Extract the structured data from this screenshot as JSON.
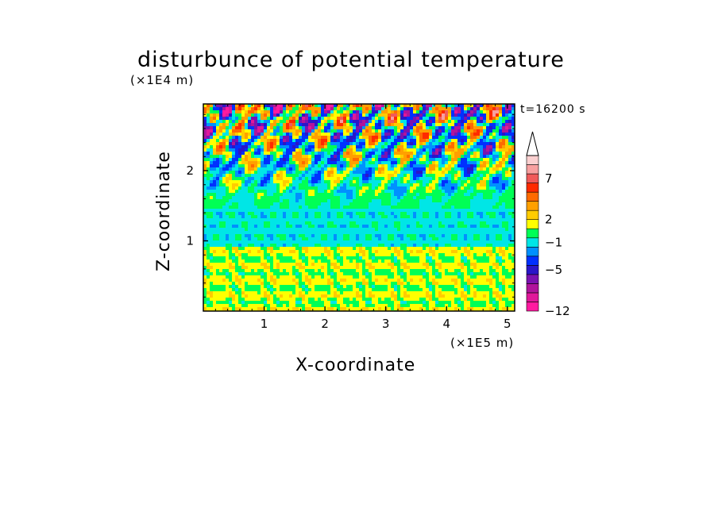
{
  "chart_data": {
    "type": "heatmap",
    "title": "disturbunce of potential temperature",
    "xlabel": "X-coordinate",
    "ylabel": "Z-coordinate",
    "x_unit": "(×1E5 m)",
    "z_unit": "(×1E4 m)",
    "time_label": "t=16200 s",
    "xlim": [
      0,
      5.12
    ],
    "ylim": [
      0,
      2.95
    ],
    "x_ticks": [
      {
        "value": 1,
        "label": "1"
      },
      {
        "value": 2,
        "label": "2"
      },
      {
        "value": 3,
        "label": "3"
      },
      {
        "value": 4,
        "label": "4"
      },
      {
        "value": 5,
        "label": "5"
      }
    ],
    "y_ticks": [
      {
        "value": 1,
        "label": "1"
      },
      {
        "value": 2,
        "label": "2"
      }
    ],
    "colorbar": {
      "colors": [
        "#ff1aa0",
        "#e0189a",
        "#b0149c",
        "#7a12b0",
        "#2a16c8",
        "#0030ff",
        "#0090ff",
        "#00e6e6",
        "#00ff55",
        "#ffff00",
        "#ffcc00",
        "#ffa000",
        "#ff6a00",
        "#ff2a00",
        "#f05a5a",
        "#f7a0a0",
        "#fad0d0"
      ],
      "labels": [
        {
          "level": 7,
          "label": "7"
        },
        {
          "level": 2,
          "label": "2"
        },
        {
          "level": -1,
          "label": "−1"
        },
        {
          "level": -5,
          "label": "−5"
        },
        {
          "level": -12,
          "label": "−12"
        }
      ],
      "label_band_index": [
        14.5,
        10.0,
        7.5,
        4.5,
        0.0
      ],
      "top_arrow": true
    },
    "field_bands": [
      {
        "z_range": [
          0.0,
          0.35
        ],
        "dominant": "#ffff00",
        "secondary": "#00ff55"
      },
      {
        "z_range": [
          0.35,
          0.9
        ],
        "dominant": "#ffff00",
        "secondary": "#ffcc00"
      },
      {
        "z_range": [
          0.9,
          1.4
        ],
        "dominant": "#00ff55",
        "secondary": "#ffff00"
      },
      {
        "z_range": [
          1.4,
          2.95
        ],
        "dominant": "#ffcc00",
        "secondary": "#2a16c8"
      }
    ]
  }
}
